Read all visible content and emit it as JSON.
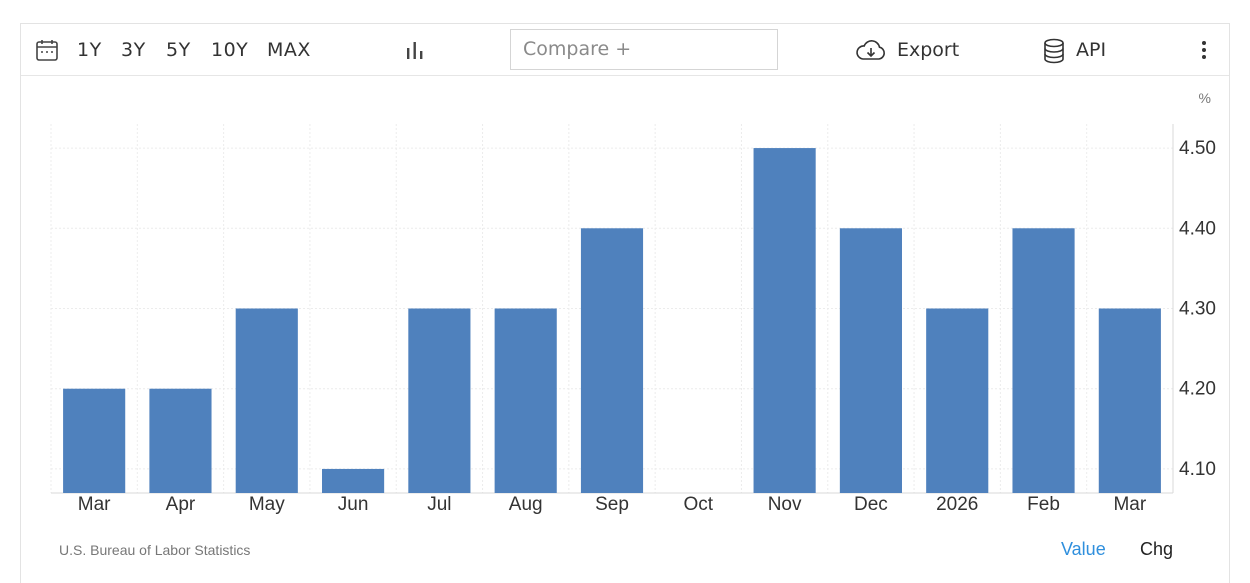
{
  "toolbar": {
    "ranges": [
      "1Y",
      "3Y",
      "5Y",
      "10Y",
      "MAX"
    ],
    "compare_placeholder": "Compare +",
    "export_label": "Export",
    "api_label": "API"
  },
  "icons": {
    "calendar": "calendar-icon",
    "chart_type": "bar-chart-icon",
    "export": "cloud-download-icon",
    "api": "database-icon",
    "menu": "more-vertical-icon"
  },
  "unit_label": "%",
  "footer": {
    "source": "U.S. Bureau of Labor Statistics",
    "value_label": "Value",
    "chg_label": "Chg"
  },
  "colors": {
    "bar": "#4f81bd",
    "active_toggle": "#2f8fdd"
  },
  "chart_data": {
    "type": "bar",
    "categories": [
      "Mar",
      "Apr",
      "May",
      "Jun",
      "Jul",
      "Aug",
      "Sep",
      "Oct",
      "Nov",
      "Dec",
      "2026",
      "Feb",
      "Mar"
    ],
    "values": [
      4.2,
      4.2,
      4.3,
      4.1,
      4.3,
      4.3,
      4.4,
      null,
      4.5,
      4.4,
      4.3,
      4.4,
      4.3
    ],
    "yticks": [
      "4.10",
      "4.20",
      "4.30",
      "4.40",
      "4.50"
    ],
    "ylim": [
      4.07,
      4.53
    ],
    "unit": "%",
    "grid": true,
    "y_axis_side": "right"
  }
}
